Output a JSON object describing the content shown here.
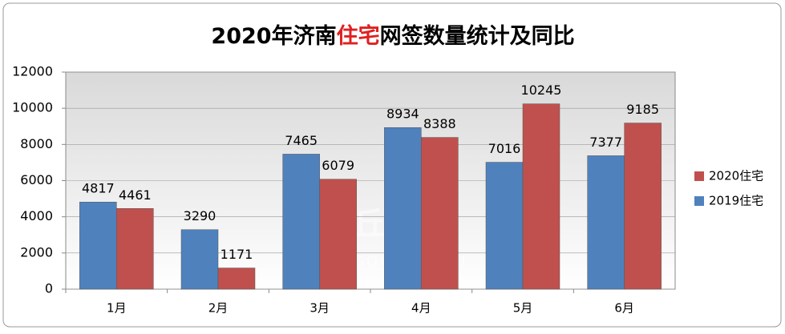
{
  "chart_data": {
    "type": "bar",
    "title_parts": [
      "2020年济南",
      "住宅",
      "网签数量统计及同比"
    ],
    "title_colors": [
      "#000000",
      "#e02020",
      "#000000"
    ],
    "watermark": [
      "章丘楼市",
      "ZHANGQIULOUSHI"
    ],
    "categories": [
      "1月",
      "2月",
      "3月",
      "4月",
      "5月",
      "6月"
    ],
    "series": [
      {
        "name": "2019住宅",
        "color": "#4f81bd",
        "values": [
          4817,
          3290,
          7465,
          8934,
          7016,
          7377
        ]
      },
      {
        "name": "2020住宅",
        "color": "#c0504d",
        "values": [
          4461,
          1171,
          6079,
          8388,
          10245,
          9185
        ]
      }
    ],
    "ylim": [
      0,
      12000
    ],
    "yticks": [
      0,
      2000,
      4000,
      6000,
      8000,
      10000,
      12000
    ],
    "grid": true,
    "legend": "right",
    "data_labels": true
  }
}
